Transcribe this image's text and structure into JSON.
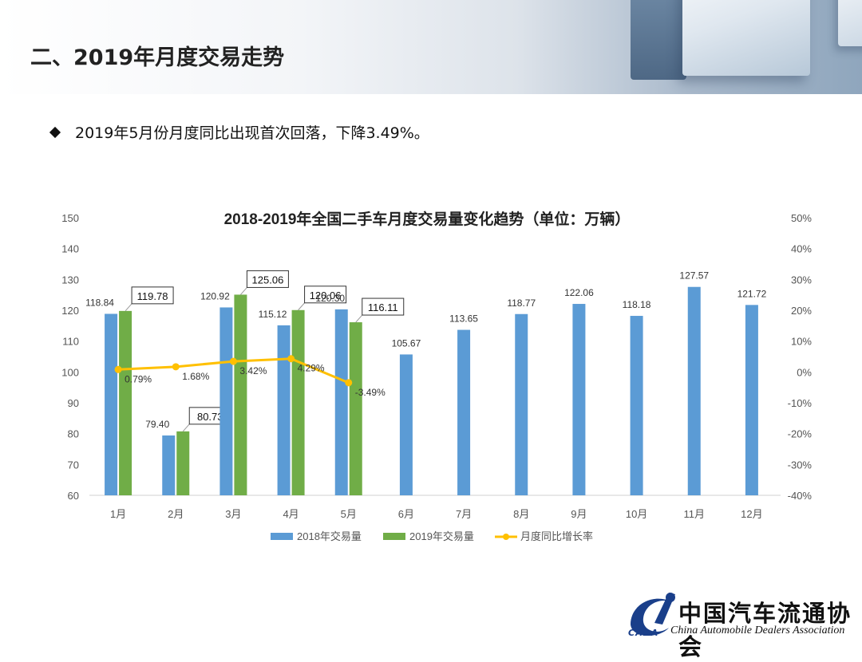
{
  "header": {
    "title": "二、2019年月度交易走势"
  },
  "bullet": {
    "text": "2019年5月份月度同比出现首次回落，下降3.49%。"
  },
  "footer_logo": {
    "name_cn": "中国汽车流通协会",
    "name_en": "China Automobile Dealers Association",
    "abbr": "CADA"
  },
  "colors": {
    "series_2018": "#5b9bd5",
    "series_2019": "#70ad47",
    "growth_line": "#ffc000"
  },
  "chart_data": {
    "type": "bar",
    "title": "2018-2019年全国二手车月度交易量变化趋势（单位：万辆）",
    "categories": [
      "1月",
      "2月",
      "3月",
      "4月",
      "5月",
      "6月",
      "7月",
      "8月",
      "9月",
      "10月",
      "11月",
      "12月"
    ],
    "series": [
      {
        "name": "2018年交易量",
        "type": "bar",
        "axis": "left",
        "values": [
          118.84,
          79.4,
          120.92,
          115.12,
          120.3,
          105.67,
          113.65,
          118.77,
          122.06,
          118.18,
          127.57,
          121.72
        ],
        "labels": [
          "118.84",
          "79.40",
          "120.92",
          "115.12",
          "120.30",
          "105.67",
          "113.65",
          "118.77",
          "122.06",
          "118.18",
          "127.57",
          "121.72"
        ]
      },
      {
        "name": "2019年交易量",
        "type": "bar",
        "axis": "left",
        "values": [
          119.78,
          80.73,
          125.06,
          120.06,
          116.11,
          null,
          null,
          null,
          null,
          null,
          null,
          null
        ],
        "labels": [
          "119.78",
          "80.73",
          "125.06",
          "120.06",
          "116.11",
          null,
          null,
          null,
          null,
          null,
          null,
          null
        ]
      },
      {
        "name": "月度同比增长率",
        "type": "line",
        "axis": "right",
        "values": [
          0.79,
          1.68,
          3.42,
          4.29,
          -3.49,
          null,
          null,
          null,
          null,
          null,
          null,
          null
        ],
        "labels": [
          "0.79%",
          "1.68%",
          "3.42%",
          "4.29%",
          "-3.49%",
          null,
          null,
          null,
          null,
          null,
          null,
          null
        ]
      }
    ],
    "y_left": {
      "range": [
        60,
        150
      ],
      "ticks": [
        "150",
        "140",
        "130",
        "120",
        "110",
        "100",
        "90",
        "80",
        "70",
        "60"
      ]
    },
    "y_right": {
      "range": [
        -40,
        50
      ],
      "ticks": [
        "50%",
        "40%",
        "30%",
        "20%",
        "10%",
        "0%",
        "-10%",
        "-20%",
        "-30%",
        "-40%"
      ]
    },
    "grid": false,
    "legend": "bottom"
  }
}
